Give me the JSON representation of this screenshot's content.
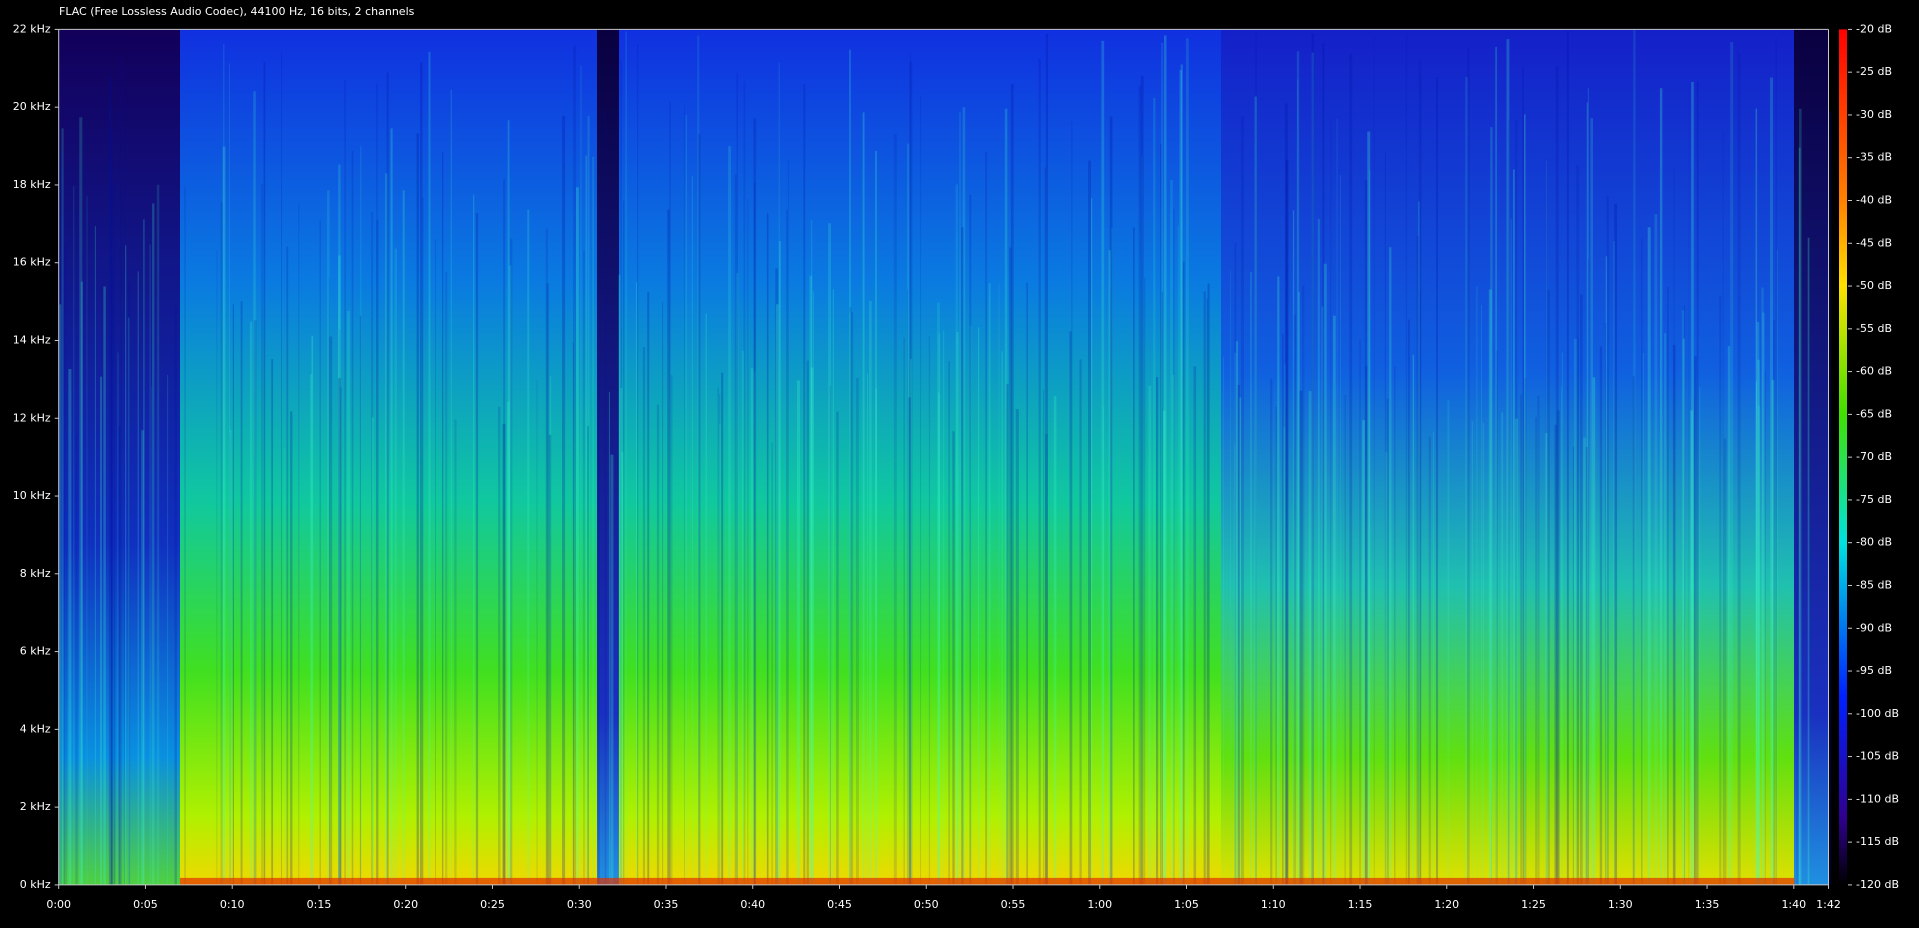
{
  "chart_data": {
    "type": "spectrogram",
    "title": "FLAC (Free Lossless Audio Codec), 44100 Hz, 16 bits, 2 channels",
    "xlim": [
      0,
      102
    ],
    "xticks": [
      {
        "value": 0,
        "label": "0:00"
      },
      {
        "value": 5,
        "label": "0:05"
      },
      {
        "value": 10,
        "label": "0:10"
      },
      {
        "value": 15,
        "label": "0:15"
      },
      {
        "value": 20,
        "label": "0:20"
      },
      {
        "value": 25,
        "label": "0:25"
      },
      {
        "value": 30,
        "label": "0:30"
      },
      {
        "value": 35,
        "label": "0:35"
      },
      {
        "value": 40,
        "label": "0:40"
      },
      {
        "value": 45,
        "label": "0:45"
      },
      {
        "value": 50,
        "label": "0:50"
      },
      {
        "value": 55,
        "label": "0:55"
      },
      {
        "value": 60,
        "label": "1:00"
      },
      {
        "value": 65,
        "label": "1:05"
      },
      {
        "value": 70,
        "label": "1:10"
      },
      {
        "value": 75,
        "label": "1:15"
      },
      {
        "value": 80,
        "label": "1:20"
      },
      {
        "value": 85,
        "label": "1:25"
      },
      {
        "value": 90,
        "label": "1:30"
      },
      {
        "value": 95,
        "label": "1:35"
      },
      {
        "value": 100,
        "label": "1:40"
      },
      {
        "value": 102,
        "label": "1:42"
      }
    ],
    "ylim": [
      0,
      22
    ],
    "yticks": [
      {
        "value": 0,
        "label": "0 kHz"
      },
      {
        "value": 2,
        "label": "2 kHz"
      },
      {
        "value": 4,
        "label": "4 kHz"
      },
      {
        "value": 6,
        "label": "6 kHz"
      },
      {
        "value": 8,
        "label": "8 kHz"
      },
      {
        "value": 10,
        "label": "10 kHz"
      },
      {
        "value": 12,
        "label": "12 kHz"
      },
      {
        "value": 14,
        "label": "14 kHz"
      },
      {
        "value": 16,
        "label": "16 kHz"
      },
      {
        "value": 18,
        "label": "18 kHz"
      },
      {
        "value": 20,
        "label": "20 kHz"
      },
      {
        "value": 22,
        "label": "22 kHz"
      }
    ],
    "colorbar": {
      "lim": [
        -120,
        -20
      ],
      "ticks": [
        {
          "value": -20,
          "label": "-20 dB"
        },
        {
          "value": -25,
          "label": "-25 dB"
        },
        {
          "value": -30,
          "label": "-30 dB"
        },
        {
          "value": -35,
          "label": "-35 dB"
        },
        {
          "value": -40,
          "label": "-40 dB"
        },
        {
          "value": -45,
          "label": "-45 dB"
        },
        {
          "value": -50,
          "label": "-50 dB"
        },
        {
          "value": -55,
          "label": "-55 dB"
        },
        {
          "value": -60,
          "label": "-60 dB"
        },
        {
          "value": -65,
          "label": "-65 dB"
        },
        {
          "value": -70,
          "label": "-70 dB"
        },
        {
          "value": -75,
          "label": "-75 dB"
        },
        {
          "value": -80,
          "label": "-80 dB"
        },
        {
          "value": -85,
          "label": "-85 dB"
        },
        {
          "value": -90,
          "label": "-90 dB"
        },
        {
          "value": -95,
          "label": "-95 dB"
        },
        {
          "value": -100,
          "label": "-100 dB"
        },
        {
          "value": -105,
          "label": "-105 dB"
        },
        {
          "value": -110,
          "label": "-110 dB"
        },
        {
          "value": -115,
          "label": "-115 dB"
        },
        {
          "value": -120,
          "label": "-120 dB"
        }
      ]
    }
  }
}
